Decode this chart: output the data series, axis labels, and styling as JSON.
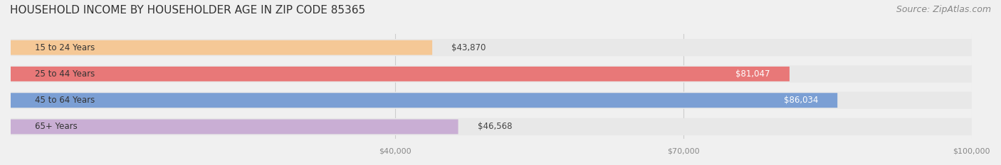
{
  "title": "HOUSEHOLD INCOME BY HOUSEHOLDER AGE IN ZIP CODE 85365",
  "source": "Source: ZipAtlas.com",
  "categories": [
    "15 to 24 Years",
    "25 to 44 Years",
    "45 to 64 Years",
    "65+ Years"
  ],
  "values": [
    43870,
    81047,
    86034,
    46568
  ],
  "bar_colors": [
    "#f5c896",
    "#e87878",
    "#7b9fd4",
    "#c9aed4"
  ],
  "bar_label_colors": [
    "#555555",
    "#ffffff",
    "#ffffff",
    "#555555"
  ],
  "xlim": [
    0,
    100000
  ],
  "xticks": [
    40000,
    70000,
    100000
  ],
  "xticklabels": [
    "$40,000",
    "$70,000",
    "$100,000"
  ],
  "background_color": "#f0f0f0",
  "bar_bg_color": "#e8e8e8",
  "title_fontsize": 11,
  "source_fontsize": 9,
  "label_fontsize": 8.5,
  "value_fontsize": 8.5,
  "bar_height": 0.55,
  "figsize": [
    14.06,
    2.33
  ],
  "dpi": 100
}
